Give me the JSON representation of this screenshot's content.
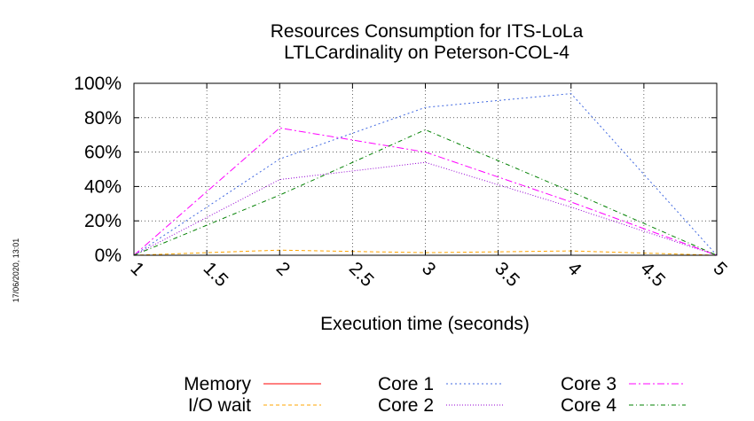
{
  "chart_data": {
    "type": "line",
    "title": "Resources Consumption for ITS-LoLa",
    "subtitle": "LTLCardinality on Peterson-COL-4",
    "xlabel": "Execution time (seconds)",
    "ylabel": "",
    "timestamp": "17/06/2020, 13:01",
    "xlim": [
      1,
      5
    ],
    "ylim": [
      0,
      100
    ],
    "x_ticks": [
      1,
      1.5,
      2,
      2.5,
      3,
      3.5,
      4,
      4.5,
      5
    ],
    "x_tick_labels": [
      "1",
      "1.5",
      "2",
      "2.5",
      "3",
      "3.5",
      "4",
      "4.5",
      "5"
    ],
    "y_ticks": [
      0,
      20,
      40,
      60,
      80,
      100
    ],
    "y_tick_labels": [
      "0%",
      "20%",
      "40%",
      "60%",
      "80%",
      "100%"
    ],
    "grid": true,
    "legend_position": "bottom",
    "x": [
      1,
      2,
      3,
      4,
      5
    ],
    "series": [
      {
        "name": "Memory",
        "color": "#ff0000",
        "dash": "none",
        "values": [
          0,
          0,
          0,
          0,
          0
        ]
      },
      {
        "name": "I/O wait",
        "color": "#ffa500",
        "dash": "4,3",
        "values": [
          0,
          3,
          1.5,
          2.5,
          0
        ]
      },
      {
        "name": "Core 1",
        "color": "#4169e1",
        "dash": "2,3",
        "values": [
          0,
          56,
          86,
          94,
          0
        ]
      },
      {
        "name": "Core 2",
        "color": "#9400d3",
        "dash": "1,2",
        "values": [
          0,
          44,
          54,
          28,
          0
        ]
      },
      {
        "name": "Core 3",
        "color": "#ff00ff",
        "dash": "8,3,2,3",
        "values": [
          0,
          74,
          60,
          31,
          0
        ]
      },
      {
        "name": "Core 4",
        "color": "#008000",
        "dash": "5,3,1,3",
        "values": [
          0,
          35,
          73,
          37,
          0
        ]
      }
    ]
  }
}
